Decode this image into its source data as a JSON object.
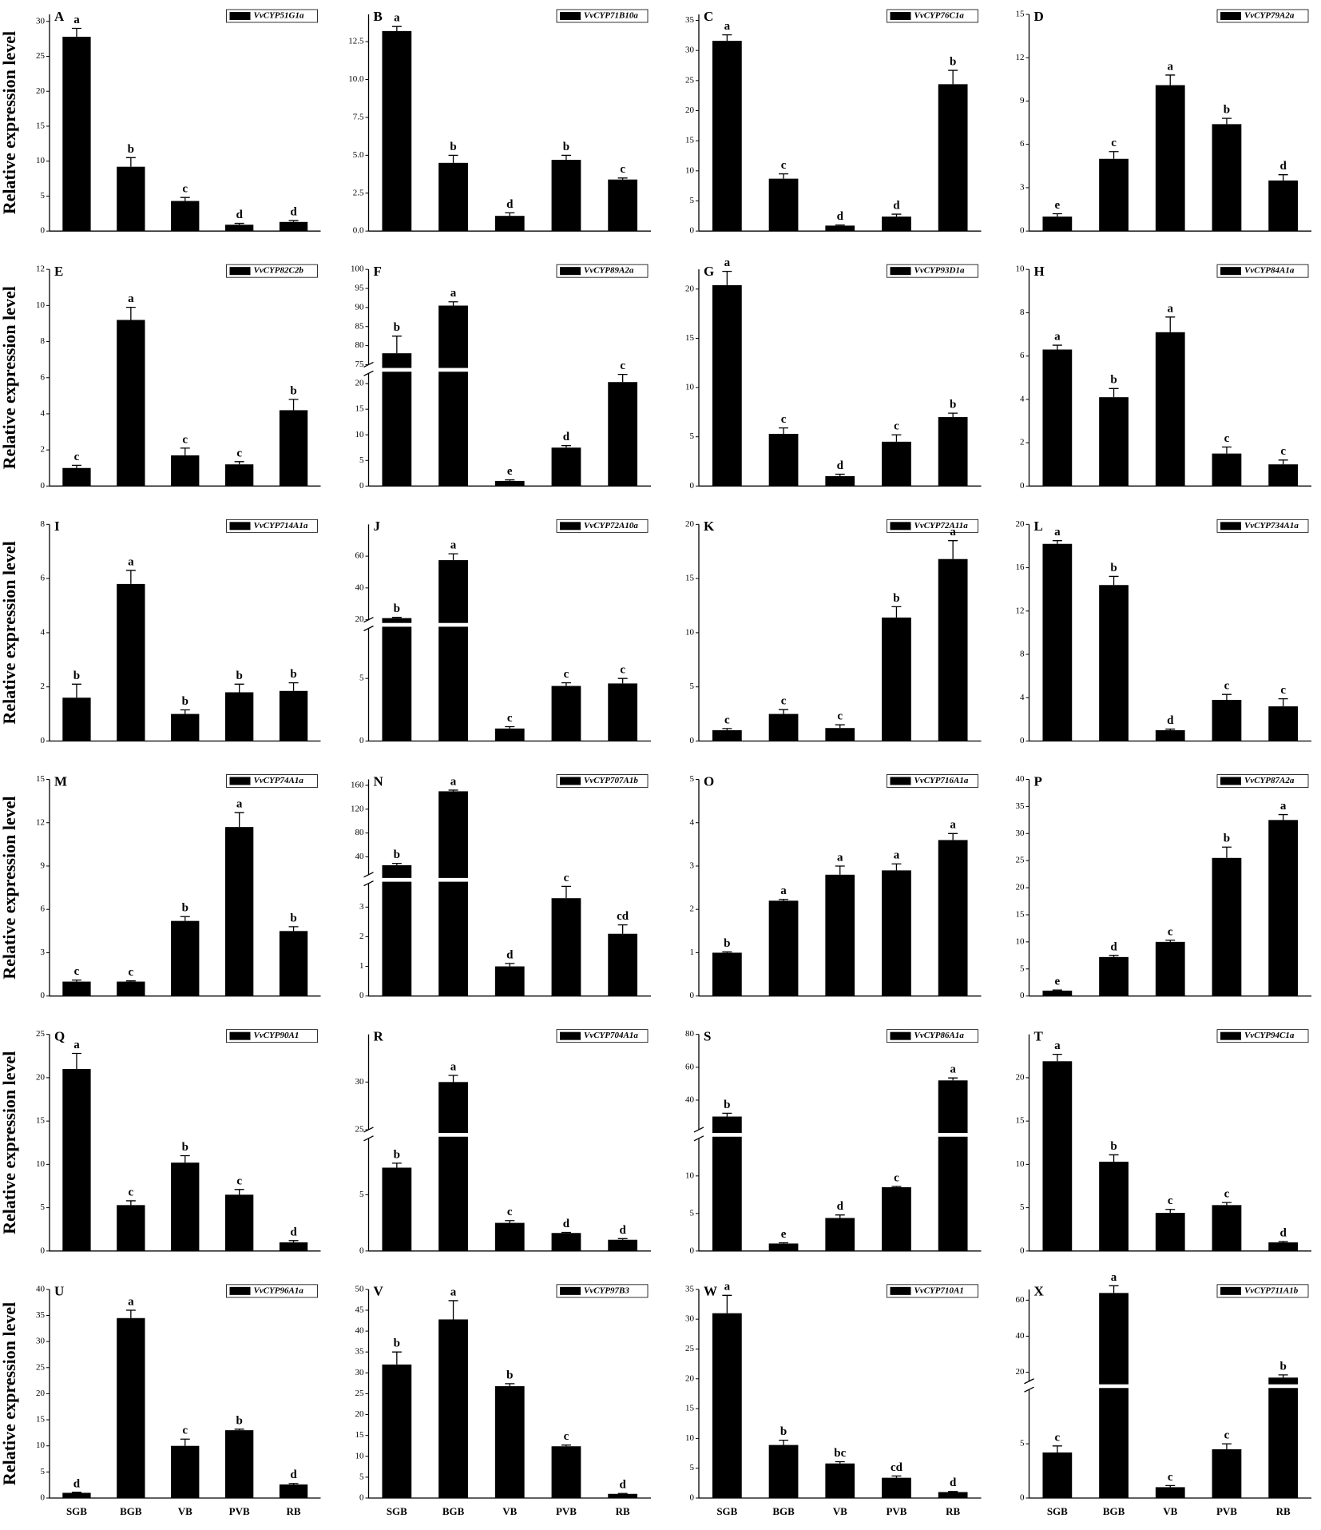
{
  "chart_data": [
    {
      "type": "bar",
      "panel": "A",
      "ylabel": "Relative expression level",
      "ylim": [
        0,
        31
      ],
      "yticks": [
        0,
        5,
        10,
        15,
        20,
        25,
        30
      ],
      "series": [
        {
          "name": "VvCYP51G1a",
          "color": "#000000",
          "values": [
            27.8,
            9.2,
            4.3,
            0.9,
            1.3
          ],
          "errors": [
            1.2,
            1.3,
            0.5,
            0.2,
            0.2
          ],
          "significance": [
            "a",
            "b",
            "c",
            "d",
            "d"
          ]
        }
      ]
    },
    {
      "type": "bar",
      "panel": "B",
      "ylim": [
        0,
        14.3
      ],
      "yticks": [
        {
          "value": 0,
          "label": "0.0"
        },
        {
          "value": 2.5,
          "label": "2.5"
        },
        {
          "value": 5,
          "label": "5.0"
        },
        {
          "value": 7.5,
          "label": "7.5"
        },
        {
          "value": 10,
          "label": "10.0"
        },
        {
          "value": 12.5,
          "label": "12.5"
        }
      ],
      "series": [
        {
          "name": "VvCYP71B10a",
          "color": "#000000",
          "values": [
            13.2,
            4.5,
            1.0,
            4.7,
            3.4
          ],
          "errors": [
            0.3,
            0.5,
            0.2,
            0.3,
            0.1
          ],
          "significance": [
            "a",
            "b",
            "d",
            "b",
            "c"
          ]
        }
      ]
    },
    {
      "type": "bar",
      "panel": "C",
      "ylim": [
        0,
        36
      ],
      "yticks": [
        0,
        5,
        10,
        15,
        20,
        25,
        30,
        35
      ],
      "series": [
        {
          "name": "VvCYP76C1a",
          "color": "#000000",
          "values": [
            31.6,
            8.7,
            0.9,
            2.4,
            24.4
          ],
          "errors": [
            1.0,
            0.8,
            0.1,
            0.4,
            2.3
          ],
          "significance": [
            "a",
            "c",
            "d",
            "d",
            "b"
          ]
        }
      ]
    },
    {
      "type": "bar",
      "panel": "D",
      "ylim": [
        0,
        15
      ],
      "yticks": [
        0,
        3,
        6,
        9,
        12,
        15
      ],
      "series": [
        {
          "name": "VvCYP79A2a",
          "color": "#000000",
          "values": [
            1.0,
            5.0,
            10.1,
            7.4,
            3.5
          ],
          "errors": [
            0.2,
            0.5,
            0.7,
            0.4,
            0.4
          ],
          "significance": [
            "e",
            "c",
            "a",
            "b",
            "d"
          ]
        }
      ]
    },
    {
      "type": "bar",
      "panel": "E",
      "ylabel": "Relative expression level",
      "ylim": [
        0,
        12
      ],
      "yticks": [
        0,
        2,
        4,
        6,
        8,
        10,
        12
      ],
      "series": [
        {
          "name": "VvCYP82C2b",
          "color": "#000000",
          "values": [
            1.0,
            9.2,
            1.7,
            1.2,
            4.2
          ],
          "errors": [
            0.15,
            0.7,
            0.4,
            0.15,
            0.6
          ],
          "significance": [
            "c",
            "a",
            "c",
            "c",
            "b"
          ]
        }
      ]
    },
    {
      "type": "bar",
      "panel": "F",
      "ylim": [
        0,
        100
      ],
      "ybreak": [
        22,
        75
      ],
      "yticks": [
        0,
        5,
        10,
        15,
        20,
        75,
        80,
        85,
        90,
        95,
        100
      ],
      "series": [
        {
          "name": "VvCYP89A2a",
          "color": "#000000",
          "values": [
            78,
            90.5,
            1.0,
            7.5,
            20.3
          ],
          "errors": [
            4.5,
            1.0,
            0.2,
            0.4,
            1.5
          ],
          "significance": [
            "b",
            "a",
            "e",
            "d",
            "c"
          ]
        }
      ]
    },
    {
      "type": "bar",
      "panel": "G",
      "ylim": [
        0,
        22
      ],
      "yticks": [
        0,
        5,
        10,
        15,
        20
      ],
      "series": [
        {
          "name": "VvCYP93D1a",
          "color": "#000000",
          "values": [
            20.4,
            5.3,
            1.0,
            4.5,
            7.0
          ],
          "errors": [
            1.4,
            0.6,
            0.2,
            0.7,
            0.4
          ],
          "significance": [
            "a",
            "c",
            "d",
            "c",
            "b"
          ]
        }
      ]
    },
    {
      "type": "bar",
      "panel": "H",
      "ylim": [
        0,
        10
      ],
      "yticks": [
        0,
        2,
        4,
        6,
        8,
        10
      ],
      "series": [
        {
          "name": "VvCYP84A1a",
          "color": "#000000",
          "values": [
            6.3,
            4.1,
            7.1,
            1.5,
            1.0
          ],
          "errors": [
            0.2,
            0.4,
            0.7,
            0.3,
            0.2
          ],
          "significance": [
            "a",
            "b",
            "a",
            "c",
            "c"
          ]
        }
      ]
    },
    {
      "type": "bar",
      "panel": "I",
      "ylabel": "Relative expression level",
      "ylim": [
        0,
        8
      ],
      "yticks": [
        0,
        2,
        4,
        6,
        8
      ],
      "series": [
        {
          "name": "VvCYP714A1a",
          "color": "#000000",
          "values": [
            1.6,
            5.8,
            1.0,
            1.8,
            1.85
          ],
          "errors": [
            0.5,
            0.5,
            0.15,
            0.3,
            0.3
          ],
          "significance": [
            "b",
            "a",
            "b",
            "b",
            "b"
          ]
        }
      ]
    },
    {
      "type": "bar",
      "panel": "J",
      "ylim": [
        0,
        80
      ],
      "ybreak": [
        9,
        20
      ],
      "yticks": [
        0,
        5,
        20,
        40,
        60
      ],
      "series": [
        {
          "name": "VvCYP72A10a",
          "color": "#000000",
          "values": [
            21,
            57.5,
            1.0,
            4.4,
            4.6
          ],
          "errors": [
            0.5,
            4,
            0.15,
            0.25,
            0.4
          ],
          "significance": [
            "b",
            "a",
            "c",
            "c",
            "c"
          ]
        }
      ]
    },
    {
      "type": "bar",
      "panel": "K",
      "ylim": [
        0,
        20
      ],
      "yticks": [
        0,
        5,
        10,
        15,
        20
      ],
      "series": [
        {
          "name": "VvCYP72A11a",
          "color": "#000000",
          "values": [
            1.0,
            2.5,
            1.2,
            11.4,
            16.8
          ],
          "errors": [
            0.15,
            0.4,
            0.3,
            1.0,
            1.7
          ],
          "significance": [
            "c",
            "c",
            "c",
            "b",
            "a"
          ]
        }
      ]
    },
    {
      "type": "bar",
      "panel": "L",
      "ylim": [
        0,
        20
      ],
      "yticks": [
        0,
        4,
        8,
        12,
        16,
        20
      ],
      "series": [
        {
          "name": "VvCYP734A1a",
          "color": "#000000",
          "values": [
            18.2,
            14.4,
            1.0,
            3.8,
            3.2
          ],
          "errors": [
            0.3,
            0.8,
            0.1,
            0.5,
            0.7
          ],
          "significance": [
            "a",
            "b",
            "d",
            "c",
            "c"
          ]
        }
      ]
    },
    {
      "type": "bar",
      "panel": "M",
      "ylabel": "Relative expression level",
      "ylim": [
        0,
        15
      ],
      "yticks": [
        0,
        3,
        6,
        9,
        12,
        15
      ],
      "series": [
        {
          "name": "VvCYP74A1a",
          "color": "#000000",
          "values": [
            1.0,
            1.0,
            5.2,
            11.7,
            4.5
          ],
          "errors": [
            0.1,
            0.05,
            0.3,
            1.0,
            0.3
          ],
          "significance": [
            "c",
            "c",
            "b",
            "a",
            "b"
          ]
        }
      ]
    },
    {
      "type": "bar",
      "panel": "N",
      "ylim": [
        0,
        170
      ],
      "ybreak": [
        3.8,
        10
      ],
      "yticks": [
        0,
        1,
        2,
        3,
        40,
        80,
        120,
        160
      ],
      "series": [
        {
          "name": "VvCYP707A1b",
          "color": "#000000",
          "values": [
            26,
            150,
            1.0,
            3.3,
            2.1
          ],
          "errors": [
            3,
            2,
            0.1,
            0.4,
            0.3
          ],
          "significance": [
            "b",
            "a",
            "d",
            "c",
            "cd"
          ]
        }
      ]
    },
    {
      "type": "bar",
      "panel": "O",
      "ylim": [
        0,
        5
      ],
      "yticks": [
        0,
        1,
        2,
        3,
        4,
        5
      ],
      "series": [
        {
          "name": "VvCYP716A1a",
          "color": "#000000",
          "values": [
            1.0,
            2.2,
            2.8,
            2.9,
            3.6
          ],
          "errors": [
            0.02,
            0.03,
            0.2,
            0.15,
            0.15
          ],
          "significance": [
            "b",
            "a",
            "a",
            "a",
            "a"
          ]
        }
      ]
    },
    {
      "type": "bar",
      "panel": "P",
      "ylim": [
        0,
        40
      ],
      "yticks": [
        0,
        5,
        10,
        15,
        20,
        25,
        30,
        35,
        40
      ],
      "series": [
        {
          "name": "VvCYP87A2a",
          "color": "#000000",
          "values": [
            1.0,
            7.2,
            10.0,
            25.5,
            32.5
          ],
          "errors": [
            0.1,
            0.3,
            0.3,
            2,
            1
          ],
          "significance": [
            "e",
            "d",
            "c",
            "b",
            "a"
          ]
        }
      ]
    },
    {
      "type": "bar",
      "panel": "Q",
      "ylabel": "Relative expression level",
      "ylim": [
        0,
        25
      ],
      "yticks": [
        0,
        5,
        10,
        15,
        20,
        25
      ],
      "series": [
        {
          "name": "VvCYP90A1",
          "color": "#000000",
          "values": [
            21.0,
            5.3,
            10.2,
            6.5,
            1.0
          ],
          "errors": [
            1.8,
            0.5,
            0.8,
            0.6,
            0.2
          ],
          "significance": [
            "a",
            "c",
            "b",
            "c",
            "d"
          ]
        }
      ]
    },
    {
      "type": "bar",
      "panel": "R",
      "ylim": [
        0,
        35
      ],
      "ybreak": [
        10,
        25
      ],
      "yticks": [
        0,
        5,
        25,
        30
      ],
      "series": [
        {
          "name": "VvCYP704A1a",
          "color": "#000000",
          "values": [
            7.4,
            30,
            2.5,
            1.6,
            1.0
          ],
          "errors": [
            0.4,
            0.7,
            0.2,
            0.05,
            0.1
          ],
          "significance": [
            "b",
            "a",
            "c",
            "d",
            "d"
          ]
        }
      ]
    },
    {
      "type": "bar",
      "panel": "S",
      "ylim": [
        0,
        80
      ],
      "ybreak": [
        15,
        22
      ],
      "yticks": [
        0,
        5,
        10,
        40,
        60,
        80
      ],
      "series": [
        {
          "name": "VvCYP86A1a",
          "color": "#000000",
          "values": [
            30,
            1.0,
            4.4,
            8.5,
            52
          ],
          "errors": [
            2,
            0.1,
            0.4,
            0.1,
            1.5
          ],
          "significance": [
            "b",
            "e",
            "d",
            "c",
            "a"
          ]
        }
      ]
    },
    {
      "type": "bar",
      "panel": "T",
      "ylim": [
        0,
        25
      ],
      "yticks": [
        0,
        5,
        10,
        15,
        20
      ],
      "series": [
        {
          "name": "VvCYP94C1a",
          "color": "#000000",
          "values": [
            21.9,
            10.3,
            4.4,
            5.3,
            1.0
          ],
          "errors": [
            0.8,
            0.8,
            0.4,
            0.3,
            0.1
          ],
          "significance": [
            "a",
            "b",
            "c",
            "c",
            "d"
          ]
        }
      ]
    },
    {
      "type": "bar",
      "panel": "U",
      "ylabel": "Relative expression level",
      "categories": [
        "SGB",
        "BGB",
        "VB",
        "PVB",
        "RB"
      ],
      "ylim": [
        0,
        40
      ],
      "yticks": [
        0,
        5,
        10,
        15,
        20,
        25,
        30,
        35,
        40
      ],
      "series": [
        {
          "name": "VvCYP96A1a",
          "color": "#000000",
          "values": [
            1.0,
            34.5,
            10.0,
            13.0,
            2.6
          ],
          "errors": [
            0.1,
            1.5,
            1.3,
            0.2,
            0.2
          ],
          "significance": [
            "d",
            "a",
            "c",
            "b",
            "d"
          ]
        }
      ]
    },
    {
      "type": "bar",
      "panel": "V",
      "categories": [
        "SGB",
        "BGB",
        "VB",
        "PVB",
        "RB"
      ],
      "ylim": [
        0,
        50
      ],
      "yticks": [
        0,
        5,
        10,
        15,
        20,
        25,
        30,
        35,
        40,
        45,
        50
      ],
      "series": [
        {
          "name": "VvCYP97B3",
          "color": "#000000",
          "values": [
            32,
            42.8,
            26.8,
            12.4,
            1.0
          ],
          "errors": [
            3,
            4.5,
            0.6,
            0.3,
            0.1
          ],
          "significance": [
            "b",
            "a",
            "b",
            "c",
            "d"
          ]
        }
      ]
    },
    {
      "type": "bar",
      "panel": "W",
      "categories": [
        "SGB",
        "BGB",
        "VB",
        "PVB",
        "RB"
      ],
      "ylim": [
        0,
        35
      ],
      "yticks": [
        0,
        5,
        10,
        15,
        20,
        25,
        30,
        35
      ],
      "series": [
        {
          "name": "VvCYP710A1",
          "color": "#000000",
          "values": [
            31,
            8.9,
            5.8,
            3.4,
            1.0
          ],
          "errors": [
            3,
            0.8,
            0.3,
            0.3,
            0.1
          ],
          "significance": [
            "a",
            "b",
            "bc",
            "cd",
            "d"
          ]
        }
      ]
    },
    {
      "type": "bar",
      "panel": "X",
      "categories": [
        "SGB",
        "BGB",
        "VB",
        "PVB",
        "RB"
      ],
      "ylim": [
        0,
        66
      ],
      "ybreak": [
        10,
        15
      ],
      "yticks": [
        0,
        5,
        20,
        40,
        60
      ],
      "series": [
        {
          "name": "VvCYP711A1b",
          "color": "#000000",
          "values": [
            4.2,
            64,
            1.0,
            4.5,
            17
          ],
          "errors": [
            0.6,
            4,
            0.15,
            0.5,
            1.5
          ],
          "significance": [
            "c",
            "a",
            "c",
            "c",
            "b"
          ]
        }
      ]
    }
  ]
}
